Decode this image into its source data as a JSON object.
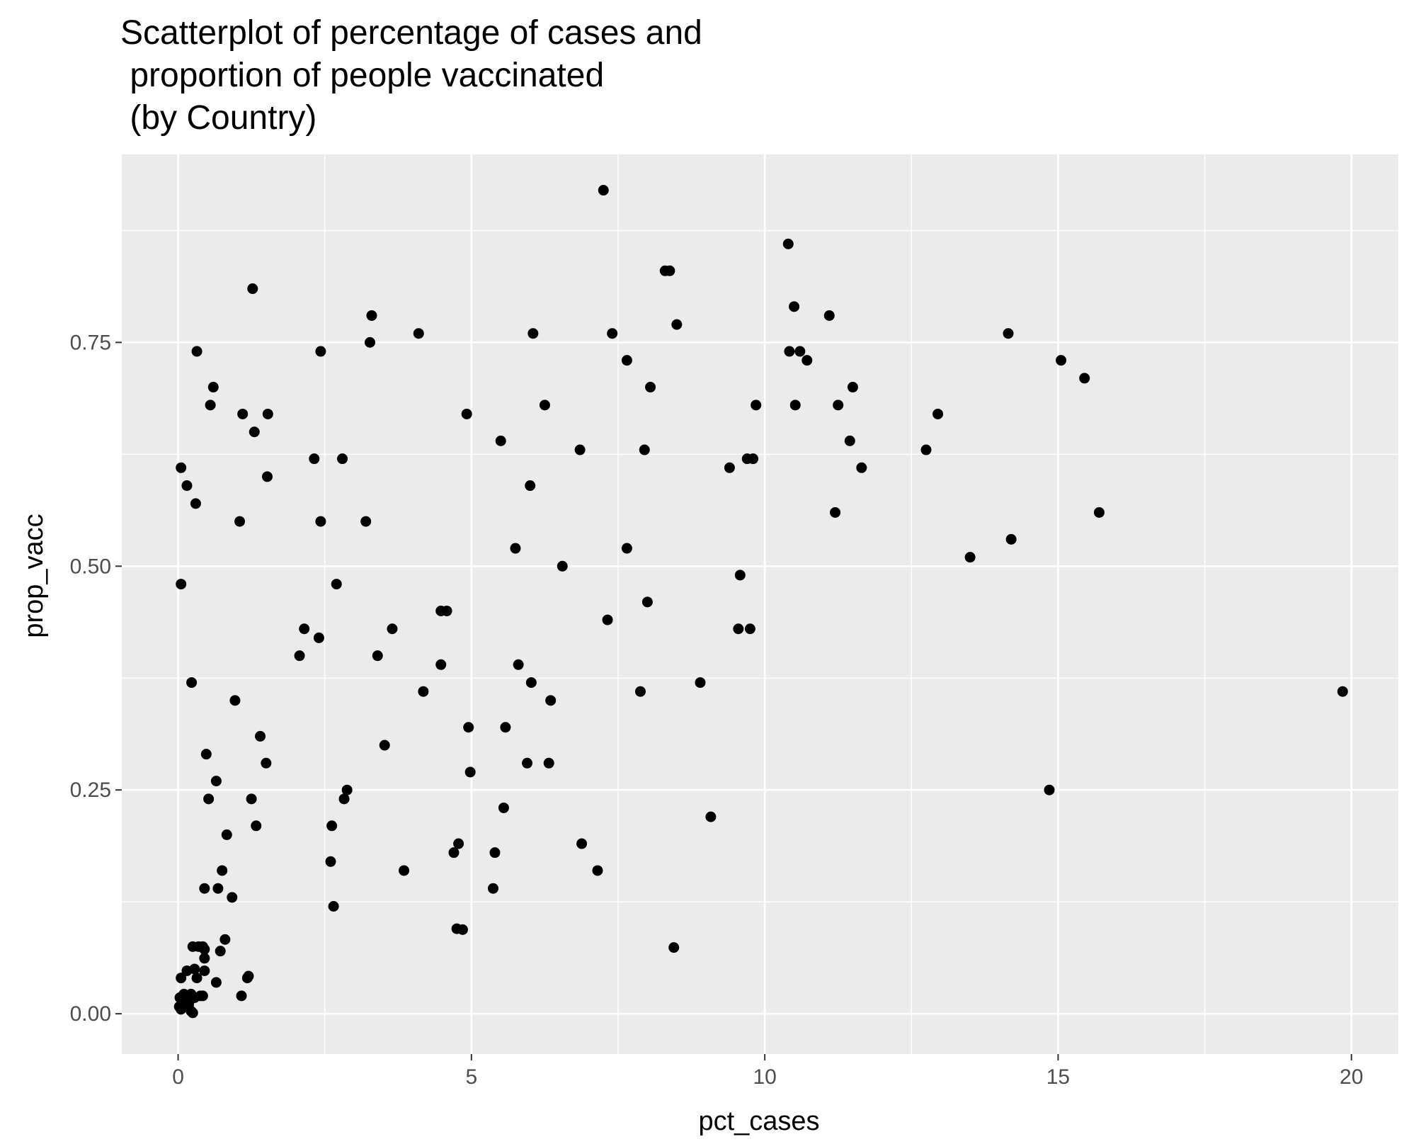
{
  "chart_data": {
    "type": "scatter",
    "title_lines": [
      "Scatterplot of percentage of cases and",
      " proportion of people vaccinated",
      " (by Country)"
    ],
    "xlabel": "pct_cases",
    "ylabel": "prop_vacc",
    "xlim": [
      -0.96,
      20.8
    ],
    "ylim": [
      -0.045,
      0.96
    ],
    "x_ticks": [
      0,
      5,
      10,
      15,
      20
    ],
    "x_tick_labels": [
      "0",
      "5",
      "10",
      "15",
      "20"
    ],
    "y_ticks": [
      0,
      0.25,
      0.5,
      0.75
    ],
    "y_tick_labels": [
      "0.00",
      "0.25",
      "0.50",
      "0.75"
    ],
    "grid": true,
    "colors": {
      "panel": "#ebebeb",
      "grid": "#ffffff",
      "point": "#000000"
    },
    "points": [
      [
        7.25,
        0.92
      ],
      [
        10.4,
        0.86
      ],
      [
        8.3,
        0.83
      ],
      [
        8.38,
        0.83
      ],
      [
        1.27,
        0.81
      ],
      [
        10.5,
        0.79
      ],
      [
        3.3,
        0.78
      ],
      [
        11.1,
        0.78
      ],
      [
        8.5,
        0.77
      ],
      [
        4.1,
        0.76
      ],
      [
        6.05,
        0.76
      ],
      [
        7.4,
        0.76
      ],
      [
        14.15,
        0.76
      ],
      [
        3.27,
        0.75
      ],
      [
        0.32,
        0.74
      ],
      [
        2.43,
        0.74
      ],
      [
        10.42,
        0.74
      ],
      [
        10.6,
        0.74
      ],
      [
        7.65,
        0.73
      ],
      [
        10.72,
        0.73
      ],
      [
        15.05,
        0.73
      ],
      [
        15.45,
        0.71
      ],
      [
        0.6,
        0.7
      ],
      [
        8.05,
        0.7
      ],
      [
        11.5,
        0.7
      ],
      [
        0.55,
        0.68
      ],
      [
        6.25,
        0.68
      ],
      [
        9.85,
        0.68
      ],
      [
        10.52,
        0.68
      ],
      [
        11.25,
        0.68
      ],
      [
        1.1,
        0.67
      ],
      [
        1.53,
        0.67
      ],
      [
        4.92,
        0.67
      ],
      [
        12.95,
        0.67
      ],
      [
        1.3,
        0.65
      ],
      [
        5.5,
        0.64
      ],
      [
        11.45,
        0.64
      ],
      [
        6.85,
        0.63
      ],
      [
        7.95,
        0.63
      ],
      [
        12.75,
        0.63
      ],
      [
        2.32,
        0.62
      ],
      [
        2.8,
        0.62
      ],
      [
        9.7,
        0.62
      ],
      [
        9.8,
        0.62
      ],
      [
        0.05,
        0.61
      ],
      [
        9.4,
        0.61
      ],
      [
        11.65,
        0.61
      ],
      [
        1.52,
        0.6
      ],
      [
        0.15,
        0.59
      ],
      [
        6.0,
        0.59
      ],
      [
        0.3,
        0.57
      ],
      [
        11.2,
        0.56
      ],
      [
        15.7,
        0.56
      ],
      [
        1.05,
        0.55
      ],
      [
        2.43,
        0.55
      ],
      [
        3.2,
        0.55
      ],
      [
        14.2,
        0.53
      ],
      [
        5.75,
        0.52
      ],
      [
        7.65,
        0.52
      ],
      [
        13.5,
        0.51
      ],
      [
        6.55,
        0.5
      ],
      [
        9.58,
        0.49
      ],
      [
        0.05,
        0.48
      ],
      [
        2.7,
        0.48
      ],
      [
        8.0,
        0.46
      ],
      [
        4.48,
        0.45
      ],
      [
        4.58,
        0.45
      ],
      [
        7.32,
        0.44
      ],
      [
        2.15,
        0.43
      ],
      [
        3.65,
        0.43
      ],
      [
        9.55,
        0.43
      ],
      [
        9.75,
        0.43
      ],
      [
        2.4,
        0.42
      ],
      [
        2.07,
        0.4
      ],
      [
        3.4,
        0.4
      ],
      [
        4.48,
        0.39
      ],
      [
        5.8,
        0.39
      ],
      [
        0.23,
        0.37
      ],
      [
        6.02,
        0.37
      ],
      [
        8.9,
        0.37
      ],
      [
        4.18,
        0.36
      ],
      [
        7.88,
        0.36
      ],
      [
        19.85,
        0.36
      ],
      [
        0.97,
        0.35
      ],
      [
        6.35,
        0.35
      ],
      [
        4.95,
        0.32
      ],
      [
        5.58,
        0.32
      ],
      [
        1.4,
        0.31
      ],
      [
        3.52,
        0.3
      ],
      [
        0.48,
        0.29
      ],
      [
        1.5,
        0.28
      ],
      [
        5.95,
        0.28
      ],
      [
        6.32,
        0.28
      ],
      [
        4.98,
        0.27
      ],
      [
        0.65,
        0.26
      ],
      [
        2.88,
        0.25
      ],
      [
        14.85,
        0.25
      ],
      [
        0.52,
        0.24
      ],
      [
        1.25,
        0.24
      ],
      [
        2.83,
        0.24
      ],
      [
        5.55,
        0.23
      ],
      [
        9.08,
        0.22
      ],
      [
        1.33,
        0.21
      ],
      [
        2.62,
        0.21
      ],
      [
        0.83,
        0.2
      ],
      [
        4.78,
        0.19
      ],
      [
        6.88,
        0.19
      ],
      [
        4.7,
        0.18
      ],
      [
        5.4,
        0.18
      ],
      [
        2.6,
        0.17
      ],
      [
        0.75,
        0.16
      ],
      [
        3.85,
        0.16
      ],
      [
        7.15,
        0.16
      ],
      [
        0.45,
        0.14
      ],
      [
        0.68,
        0.14
      ],
      [
        5.37,
        0.14
      ],
      [
        0.92,
        0.13
      ],
      [
        2.65,
        0.12
      ],
      [
        4.75,
        0.095
      ],
      [
        4.85,
        0.094
      ],
      [
        0.8,
        0.083
      ],
      [
        0.25,
        0.075
      ],
      [
        0.35,
        0.075
      ],
      [
        0.42,
        0.075
      ],
      [
        0.45,
        0.072
      ],
      [
        8.45,
        0.074
      ],
      [
        0.72,
        0.07
      ],
      [
        0.45,
        0.062
      ],
      [
        0.15,
        0.048
      ],
      [
        0.28,
        0.05
      ],
      [
        0.45,
        0.048
      ],
      [
        0.32,
        0.04
      ],
      [
        0.05,
        0.04
      ],
      [
        0.65,
        0.035
      ],
      [
        1.2,
        0.042
      ],
      [
        1.18,
        0.04
      ],
      [
        0.1,
        0.022
      ],
      [
        0.22,
        0.022
      ],
      [
        0.38,
        0.02
      ],
      [
        0.42,
        0.02
      ],
      [
        1.08,
        0.02
      ],
      [
        0.03,
        0.018
      ],
      [
        0.2,
        0.015
      ],
      [
        0.28,
        0.018
      ],
      [
        0.08,
        0.012
      ],
      [
        0.12,
        0.015
      ],
      [
        0.18,
        0.01
      ],
      [
        0.02,
        0.008
      ],
      [
        0.1,
        0.008
      ],
      [
        0.05,
        0.005
      ],
      [
        0.22,
        0.003
      ],
      [
        0.25,
        0.001
      ]
    ]
  }
}
